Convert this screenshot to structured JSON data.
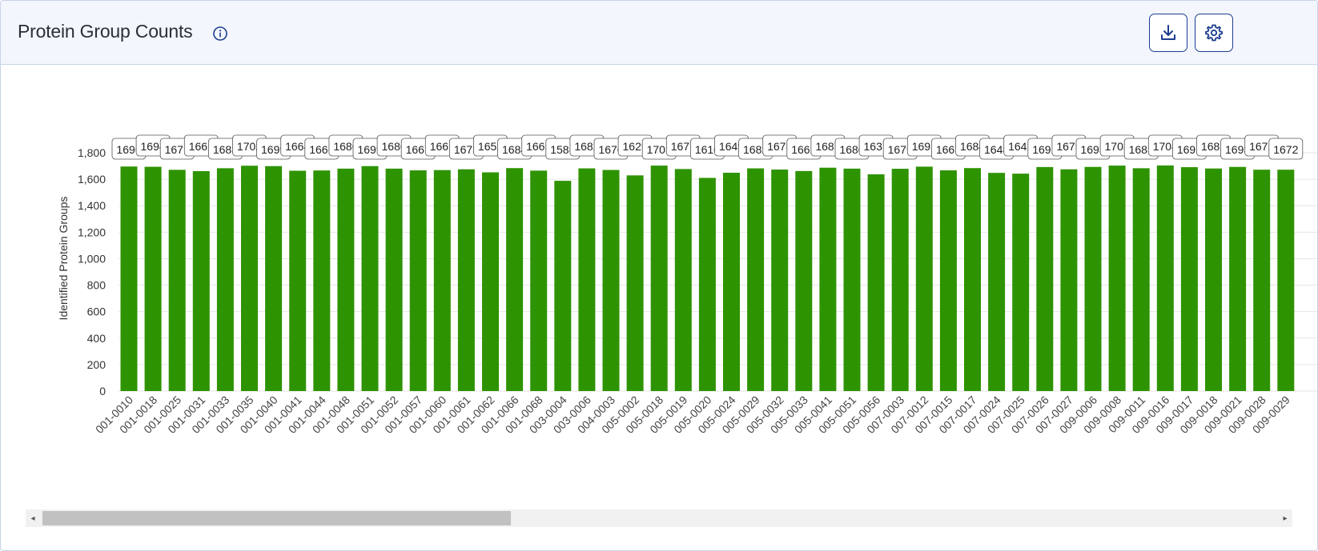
{
  "header": {
    "title": "Protein Group Counts",
    "info_icon": "info-circle-icon",
    "download_icon": "download-icon",
    "settings_icon": "gear-icon"
  },
  "colors": {
    "bar": "#2e9301",
    "accent": "#1c3d8f",
    "grid": "#e6e6e6"
  },
  "scrollbar": {
    "left_arrow": "◂",
    "right_arrow": "▸"
  },
  "chart_data": {
    "type": "bar",
    "ylabel": "Identified Protein Groups",
    "xlabel": "",
    "ylim": [
      0,
      1800
    ],
    "yticks": [
      0,
      200,
      400,
      600,
      800,
      1000,
      1200,
      1400,
      1600,
      1800
    ],
    "grid": true,
    "categories": [
      "001-0010",
      "001-0018",
      "001-0025",
      "001-0031",
      "001-0033",
      "001-0035",
      "001-0040",
      "001-0041",
      "001-0044",
      "001-0048",
      "001-0051",
      "001-0052",
      "001-0057",
      "001-0060",
      "001-0061",
      "001-0062",
      "001-0066",
      "001-0068",
      "003-0004",
      "003-0006",
      "004-0003",
      "005-0002",
      "005-0018",
      "005-0019",
      "005-0020",
      "005-0024",
      "005-0029",
      "005-0032",
      "005-0033",
      "005-0041",
      "005-0051",
      "005-0056",
      "007-0003",
      "007-0012",
      "007-0015",
      "007-0017",
      "007-0024",
      "007-0025",
      "007-0026",
      "007-0027",
      "009-0006",
      "009-0008",
      "009-0011",
      "009-0016",
      "009-0017",
      "009-0018",
      "009-0021",
      "009-0028",
      "009-0029"
    ],
    "values": [
      1696,
      1694,
      1671,
      1661,
      1683,
      1702,
      1699,
      1664,
      1666,
      1680,
      1699,
      1680,
      1667,
      1669,
      1675,
      1652,
      1684,
      1665,
      1588,
      1682,
      1670,
      1629,
      1703,
      1677,
      1610,
      1649,
      1682,
      1673,
      1662,
      1687,
      1680,
      1637,
      1679,
      1695,
      1667,
      1684,
      1648,
      1642,
      1692,
      1675,
      1693,
      1703,
      1683,
      1704,
      1691,
      1681,
      1693,
      1672,
      1672
    ]
  }
}
